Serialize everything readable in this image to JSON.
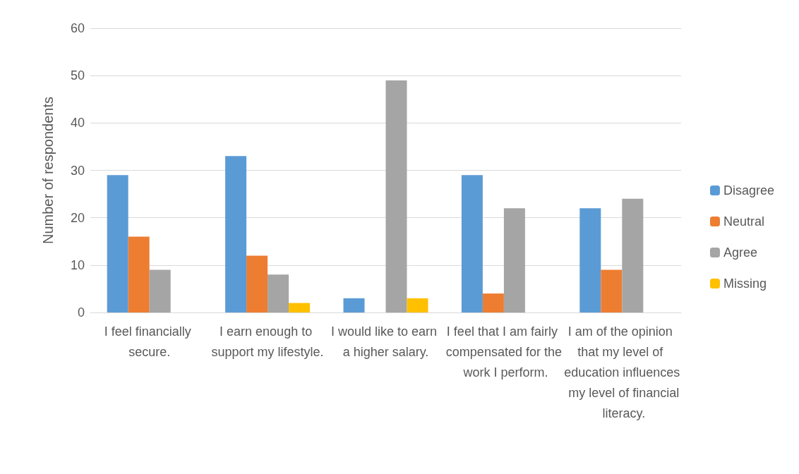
{
  "chart_data": {
    "type": "bar",
    "ylabel": "Number of respondents",
    "categories": [
      "I feel financially secure.",
      "I earn enough to support my lifestyle.",
      "I would like to earn a higher salary.",
      "I feel that I am fairly compensated for the work I perform.",
      "I am of the opinion that my level of education influences my level of financial literacy."
    ],
    "series": [
      {
        "name": "Disagree",
        "color": "#5b9bd5",
        "values": [
          29,
          33,
          3,
          29,
          22
        ]
      },
      {
        "name": "Neutral",
        "color": "#ed7d31",
        "values": [
          16,
          12,
          0,
          4,
          9
        ]
      },
      {
        "name": "Agree",
        "color": "#a5a5a5",
        "values": [
          9,
          8,
          49,
          22,
          24
        ]
      },
      {
        "name": "Missing",
        "color": "#ffc000",
        "values": [
          0,
          2,
          3,
          0,
          0
        ]
      }
    ],
    "ylim": [
      0,
      60
    ],
    "yticks": [
      0,
      10,
      20,
      30,
      40,
      50,
      60
    ],
    "grid": "y",
    "legend": "right"
  }
}
